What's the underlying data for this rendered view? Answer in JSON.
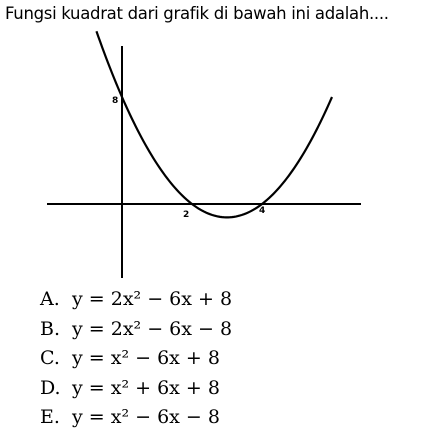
{
  "question": "Fungsi kuadrat dari grafik di bawah ini adalah....",
  "graph": {
    "y_intercept_label": "8",
    "root1_label": "2",
    "root2_label": "4",
    "axis_color": "#000000",
    "curve_color": "#000000"
  },
  "options": [
    {
      "letter": "A.",
      "equation": "y = 2x² − 6x + 8"
    },
    {
      "letter": "B.",
      "equation": "y = 2x² − 6x − 8"
    },
    {
      "letter": "C.",
      "equation": "y = x² − 6x + 8"
    },
    {
      "letter": "D.",
      "equation": "y = x² + 6x + 8"
    },
    {
      "letter": "E.",
      "equation": "y = x² − 6x − 8"
    }
  ]
}
